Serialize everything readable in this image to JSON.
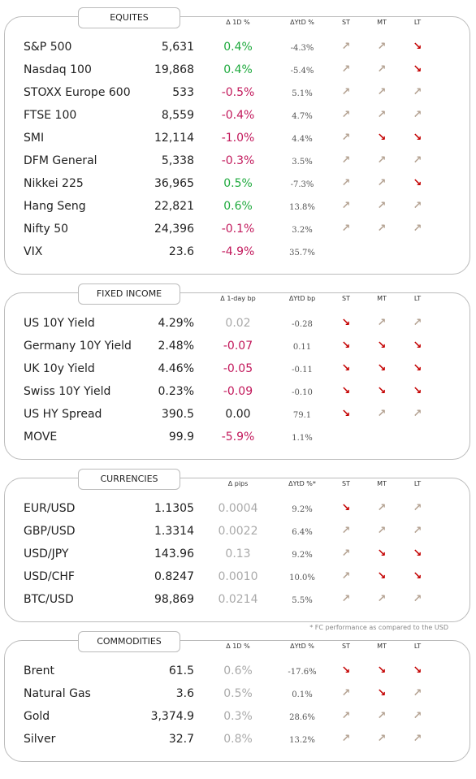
{
  "sections": [
    {
      "title": "EQUITES",
      "headers": [
        "Δ 1D %",
        "ΔYtD %",
        "ST",
        "MT",
        "LT"
      ],
      "rows": [
        [
          "S&P 500",
          "5,631",
          "0.4%",
          "-4.3%"
        ],
        [
          "Nasdaq 100",
          "19,868",
          "0.4%",
          "-5.4%"
        ],
        [
          "STOXX Europe 600",
          "533",
          "-0.5%",
          "5.1%"
        ],
        [
          "FTSE 100",
          "8,559",
          "-0.4%",
          "4.7%"
        ],
        [
          "SMI",
          "12,114",
          "-1.0%",
          "4.4%"
        ],
        [
          "DFM General",
          "5,338",
          "-0.3%",
          "3.5%"
        ],
        [
          "Nikkei 225",
          "36,965",
          "0.5%",
          "-7.3%"
        ],
        [
          "Hang Seng",
          "22,821",
          "0.6%",
          "13.8%"
        ],
        [
          "Nifty  50",
          "24,396",
          "-0.1%",
          "3.2%"
        ],
        [
          "VIX",
          "23.6",
          "-4.9%",
          "35.7%"
        ]
      ]
    },
    {
      "title": "FIXED INCOME",
      "headers": [
        "Δ 1-day bp",
        "ΔYtD bp",
        "ST",
        "MT",
        "LT"
      ],
      "rows": [
        [
          "US 10Y Yield",
          "4.29%",
          "0.02",
          "-0.28"
        ],
        [
          "Germany 10Y Yield",
          "2.48%",
          "-0.07",
          "0.11"
        ],
        [
          "UK 10y Yield",
          "4.46%",
          "-0.05",
          "-0.11"
        ],
        [
          "Swiss 10Y Yield",
          "0.23%",
          "-0.09",
          "-0.10"
        ],
        [
          "US HY Spread",
          "390.5",
          "0.00",
          "79.1"
        ],
        [
          "MOVE",
          "99.9",
          "-5.9%",
          "1.1%"
        ]
      ]
    },
    {
      "title": "CURRENCIES",
      "headers": [
        "Δ pips",
        "ΔYtD %*",
        "ST",
        "MT",
        "LT"
      ],
      "rows": [
        [
          "EUR/USD",
          "1.1305",
          "0.0004",
          "9.2%"
        ],
        [
          "GBP/USD",
          "1.3314",
          "0.0022",
          "6.4%"
        ],
        [
          "USD/JPY",
          "143.96",
          "0.13",
          "9.2%"
        ],
        [
          "USD/CHF",
          "0.8247",
          "0.0010",
          "10.0%"
        ],
        [
          "BTC/USD",
          "98,869",
          "0.0214",
          "5.5%"
        ]
      ]
    },
    {
      "title": "COMMODITIES",
      "headers": [
        "Δ 1D %",
        "ΔYtD %",
        "ST",
        "MT",
        "LT"
      ],
      "rows": [
        [
          "Brent",
          "61.5",
          "0.6%",
          "-17.6%"
        ],
        [
          "Natural Gas",
          "3.6",
          "0.5%",
          "0.1%"
        ],
        [
          "Gold",
          "3,374.9",
          "0.3%",
          "28.6%"
        ],
        [
          "Silver",
          "32.7",
          "0.8%",
          "13.2%"
        ]
      ]
    }
  ],
  "footnote": "* FC performance as compared to the USD"
}
